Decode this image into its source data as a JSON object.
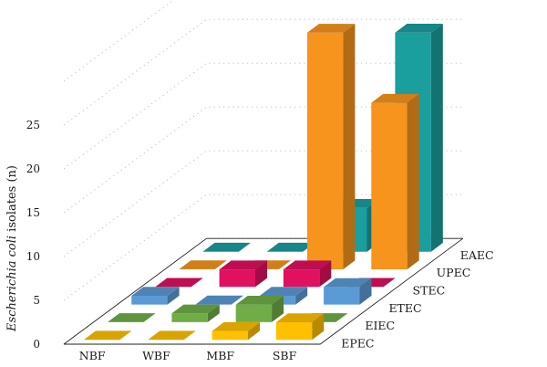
{
  "chart_data": {
    "type": "bar",
    "categories": [
      "NBF",
      "WBF",
      "MBF",
      "SBF"
    ],
    "series": [
      {
        "name": "EPEC",
        "values": [
          0,
          0,
          1,
          2
        ]
      },
      {
        "name": "EIEC",
        "values": [
          0,
          1,
          2,
          0
        ]
      },
      {
        "name": "ETEC",
        "values": [
          1,
          0,
          1,
          2
        ]
      },
      {
        "name": "STEC",
        "values": [
          0,
          2,
          2,
          0
        ]
      },
      {
        "name": "UPEC",
        "values": [
          0,
          0,
          27,
          19
        ]
      },
      {
        "name": "EAEC",
        "values": [
          0,
          0,
          5,
          25
        ]
      }
    ],
    "colors": {
      "EPEC": "#ffc000",
      "EIEC": "#70ad47",
      "ETEC": "#5b9bd5",
      "STEC": "#e0115f",
      "UPEC": "#f7941d",
      "EAEC": "#1a9e9e"
    },
    "ylabel_italic": "Escherichia coli",
    "ylabel_rest": " isolates (n)",
    "yticks": [
      0,
      5,
      10,
      15,
      20,
      25
    ],
    "ylim": [
      0,
      30
    ],
    "grid": true
  }
}
